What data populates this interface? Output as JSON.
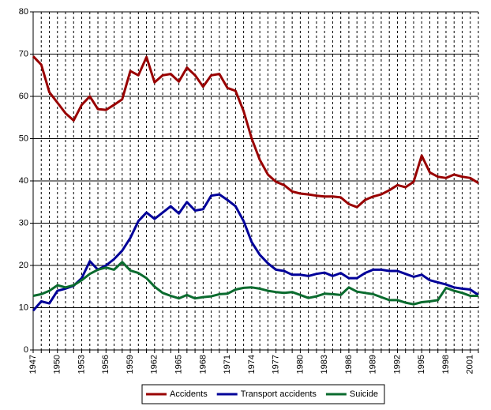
{
  "chart_data": {
    "type": "line",
    "categories": [
      "1947",
      null,
      null,
      "1950",
      null,
      null,
      "1953",
      null,
      null,
      "1956",
      null,
      null,
      "1959",
      null,
      null,
      "1962",
      null,
      null,
      "1965",
      null,
      null,
      "1968",
      null,
      null,
      "1971",
      null,
      null,
      "1974",
      null,
      null,
      "1977",
      null,
      null,
      "1980",
      null,
      null,
      "1983",
      null,
      null,
      "1986",
      null,
      null,
      "1989",
      null,
      null,
      "1992",
      null,
      null,
      "1995",
      null,
      null,
      "1998",
      null,
      null,
      "2001",
      null
    ],
    "series": [
      {
        "name": "Accidents",
        "color": "#990000",
        "values": [
          69.5,
          67.5,
          61,
          58.5,
          56,
          54.3,
          58,
          60,
          57,
          56.8,
          58,
          59.3,
          66,
          65,
          69.3,
          63.3,
          65,
          65.3,
          63.5,
          66.8,
          65,
          62.3,
          65,
          65.3,
          62,
          61.3,
          56.5,
          50,
          45,
          41.5,
          39.8,
          39,
          37.5,
          37,
          36.8,
          36.5,
          36.3,
          36.3,
          36.1,
          34.5,
          33.8,
          35.5,
          36.3,
          36.8,
          37.8,
          39,
          38.5,
          39.8,
          46,
          42,
          41,
          40.7,
          41.5,
          41,
          40.7,
          39.5
        ]
      },
      {
        "name": "Transport accidents",
        "color": "#000099",
        "values": [
          9.3,
          11.5,
          11,
          14,
          14.5,
          15.2,
          17,
          21,
          19,
          20,
          21.5,
          23.5,
          26.5,
          30.5,
          32.5,
          31,
          32.5,
          34,
          32.3,
          35,
          33,
          33.3,
          36.5,
          36.8,
          35.5,
          34,
          30.5,
          25.5,
          22.5,
          20.5,
          19,
          18.7,
          17.8,
          17.8,
          17.5,
          18,
          18.3,
          17.5,
          18.2,
          17,
          17,
          18.2,
          19,
          19,
          18.7,
          18.7,
          18,
          17.3,
          17.8,
          16.5,
          16,
          15.5,
          14.8,
          14.5,
          14.3,
          13
        ]
      },
      {
        "name": "Suicide",
        "color": "#0a6b2e",
        "values": [
          12.8,
          13.2,
          14,
          15.3,
          14.8,
          15.3,
          16.5,
          18,
          19,
          19.5,
          19,
          20.8,
          18.8,
          18.2,
          17,
          15,
          13.5,
          12.8,
          12.2,
          13,
          12.2,
          12.5,
          12.7,
          13.2,
          13.3,
          14.3,
          14.7,
          14.8,
          14.5,
          14,
          13.7,
          13.5,
          13.7,
          13,
          12.3,
          12.7,
          13.3,
          13.2,
          13,
          14.8,
          13.8,
          13.5,
          13.2,
          12.5,
          11.8,
          11.8,
          11.2,
          10.8,
          11.3,
          11.5,
          11.8,
          14.7,
          14,
          13.5,
          12.8,
          12.8
        ]
      }
    ],
    "ylim": [
      0,
      80
    ],
    "yticks": [
      0,
      10,
      20,
      30,
      40,
      50,
      60,
      70,
      80
    ],
    "grid": true,
    "legend": "bottom"
  }
}
